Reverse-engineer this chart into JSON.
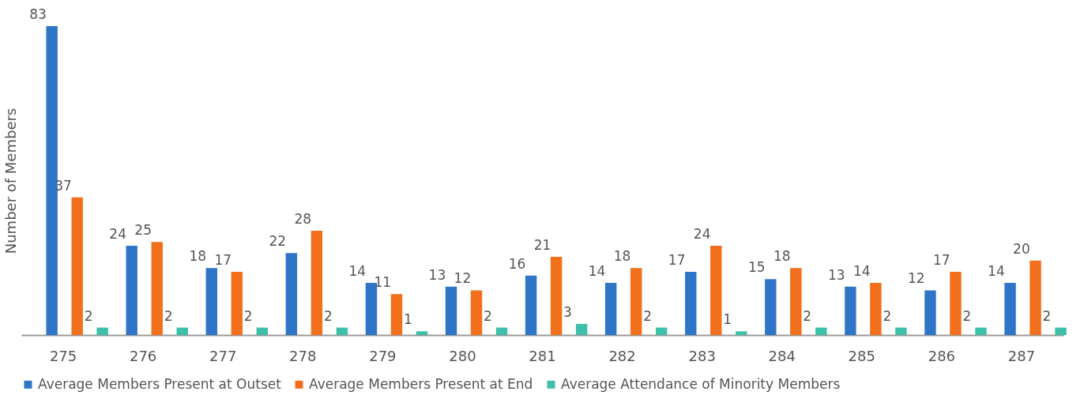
{
  "chart_data": {
    "type": "bar",
    "ylabel": "Number of Members",
    "categories": [
      "275",
      "276",
      "277",
      "278",
      "279",
      "280",
      "281",
      "282",
      "283",
      "284",
      "285",
      "286",
      "287"
    ],
    "series": [
      {
        "name": "Average Members Present at Outset",
        "color": "#2e75c8",
        "values": [
          83,
          24,
          18,
          22,
          14,
          13,
          16,
          14,
          17,
          15,
          13,
          12,
          14
        ]
      },
      {
        "name": "Average Members Present at End",
        "color": "#f26f1c",
        "values": [
          37,
          25,
          17,
          28,
          11,
          12,
          21,
          18,
          24,
          18,
          14,
          17,
          20
        ]
      },
      {
        "name": "Average Attendance of Minority Members",
        "color": "#3dbfa8",
        "values": [
          2,
          2,
          2,
          2,
          1,
          2,
          3,
          2,
          1,
          2,
          2,
          2,
          2
        ]
      }
    ],
    "data_labels": true,
    "legend": "bottom",
    "grid": false,
    "tick_labels": "x"
  }
}
